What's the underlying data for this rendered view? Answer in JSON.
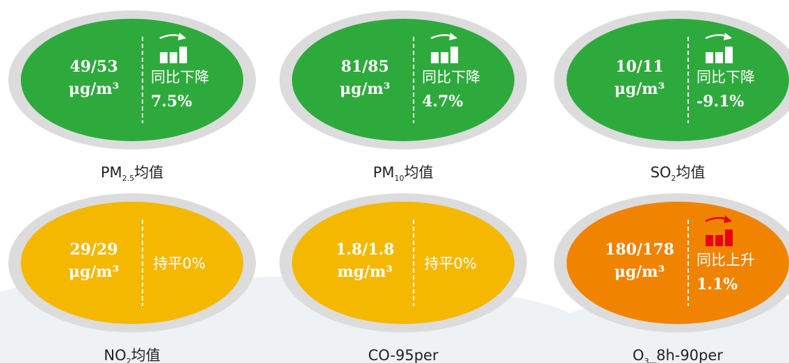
{
  "cards": [
    {
      "value": "49/53",
      "unit": "μg/m³",
      "trend": "同比下降",
      "change": "7.5%",
      "color": "#2eaa3c",
      "icon_color": "#ffffff",
      "label": {
        "text": "PM",
        "sub": "2.5",
        "suffix": "均值"
      }
    },
    {
      "value": "81/85",
      "unit": "μg/m³",
      "trend": "同比下降",
      "change": "4.7%",
      "color": "#2eaa3c",
      "icon_color": "#ffffff",
      "label": {
        "text": "PM",
        "sub": "10",
        "suffix": "均值"
      }
    },
    {
      "value": "10/11",
      "unit": "μg/m³",
      "trend": "同比下降",
      "change": "-9.1%",
      "color": "#2eaa3c",
      "icon_color": "#ffffff",
      "label": {
        "text": "SO",
        "sub": "2",
        "suffix": "均值"
      }
    },
    {
      "value": "29/29",
      "unit": "μg/m³",
      "trend": "持平0%",
      "color": "#f5b800",
      "label": {
        "text": "NO",
        "sub": "2",
        "suffix": "均值"
      }
    },
    {
      "value": "1.8/1.8",
      "unit": "mg/m³",
      "trend": "持平0%",
      "color": "#f5b800",
      "label": {
        "text": "CO-95per"
      }
    },
    {
      "value": "180/178",
      "unit": "μg/m³",
      "trend": "同比上升",
      "change": "1.1%",
      "color": "#f08300",
      "icon_color": "#e60012",
      "label": {
        "text": "O",
        "sub": "3",
        "suffix": "_8h-90per"
      }
    }
  ]
}
